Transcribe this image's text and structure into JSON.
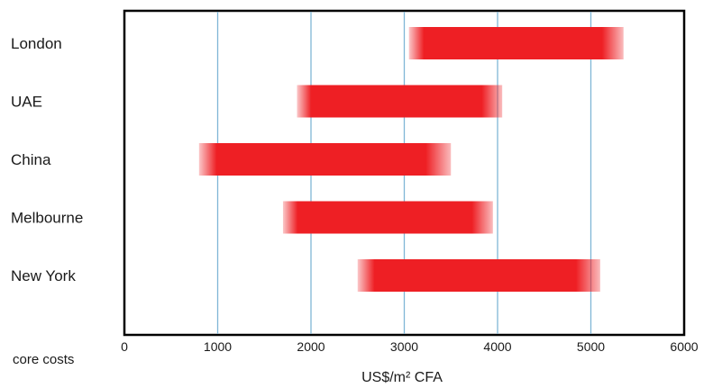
{
  "chart_data": {
    "type": "bar",
    "orientation": "horizontal",
    "chart_kind": "floating-range",
    "categories": [
      "London",
      "UAE",
      "China",
      "Melbourne",
      "New York"
    ],
    "ranges": [
      {
        "category": "London",
        "low": 3050,
        "high": 5350
      },
      {
        "category": "UAE",
        "low": 1850,
        "high": 4050
      },
      {
        "category": "China",
        "low": 800,
        "high": 3500
      },
      {
        "category": "Melbourne",
        "low": 1700,
        "high": 3950
      },
      {
        "category": "New York",
        "low": 2500,
        "high": 5100
      }
    ],
    "xlim": [
      0,
      6000
    ],
    "xticks": [
      0,
      1000,
      2000,
      3000,
      4000,
      5000,
      6000
    ],
    "xlabel": "US$/m² CFA",
    "side_note": "core costs",
    "grid": "vertical",
    "bar_color": "#ee1f24",
    "grid_color": "#7fb6d6",
    "frame_color": "#000000"
  }
}
